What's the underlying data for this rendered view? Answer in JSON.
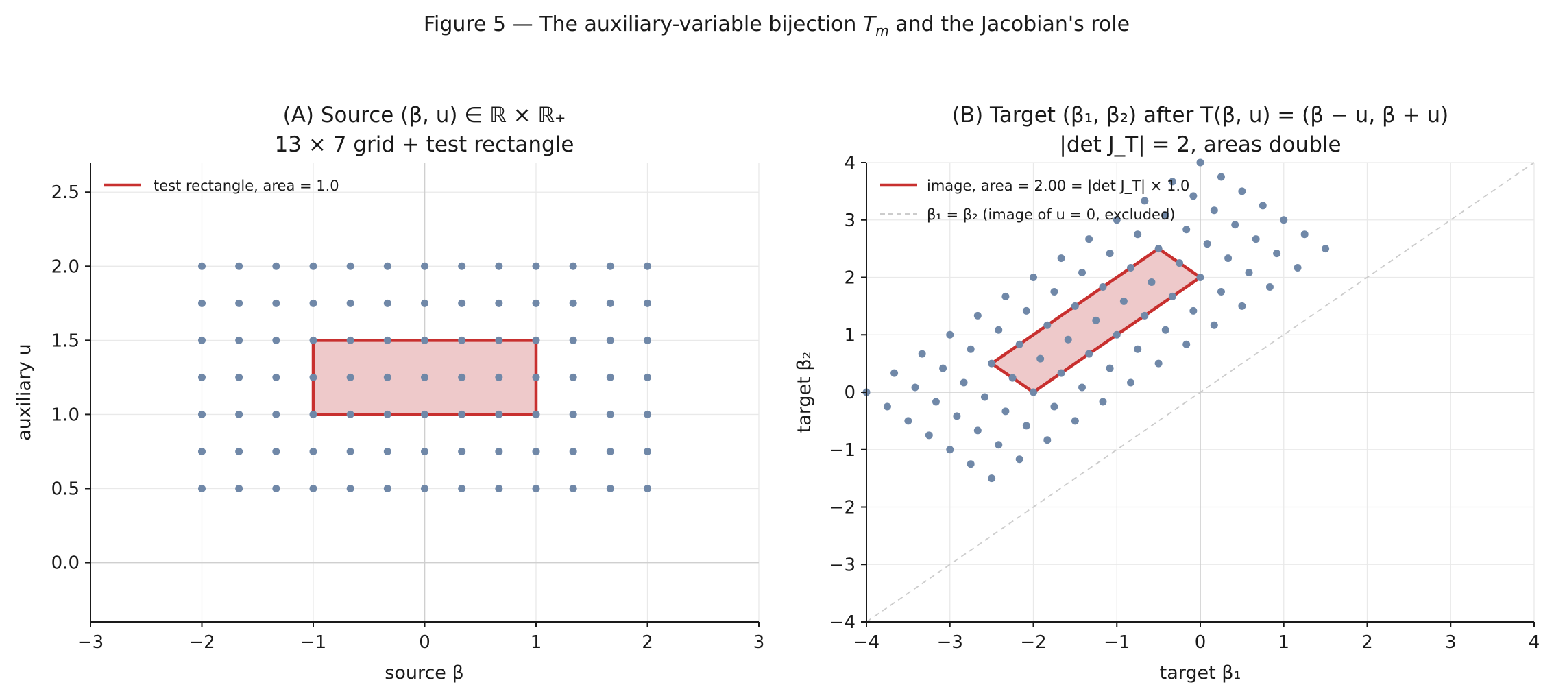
{
  "figure_title": {
    "pre": "Figure 5 — The auxiliary-variable bijection ",
    "sym": "T",
    "sub": "m",
    "post": " and the Jacobian's role"
  },
  "colors": {
    "points": "#7088a8",
    "rect_edge": "#c8302f",
    "rect_fill": "#eec9ca",
    "diagonal": "#cccccc",
    "grid": "#e9e9e9",
    "zero_line": "#cfcfcf"
  },
  "chart_data": [
    {
      "type": "scatter",
      "panel": "A",
      "title_line1": "(A) Source (β, u) ∈ ℝ × ℝ₊",
      "title_line2": "13 × 7 grid + test rectangle",
      "xlabel": "source β",
      "ylabel": "auxiliary u",
      "xlim": [
        -3,
        3
      ],
      "ylim": [
        -0.4,
        2.7
      ],
      "xticks": [
        -3,
        -2,
        -1,
        0,
        1,
        2,
        3
      ],
      "yticks": [
        0.0,
        0.5,
        1.0,
        1.5,
        2.0,
        2.5
      ],
      "xtick_labels": [
        "−3",
        "−2",
        "−1",
        "0",
        "1",
        "2",
        "3"
      ],
      "ytick_labels": [
        "0.0",
        "0.5",
        "1.0",
        "1.5",
        "2.0",
        "2.5"
      ],
      "grid": true,
      "grid_x": {
        "start": -2,
        "stop": 2,
        "count": 13
      },
      "grid_u": {
        "start": 0.5,
        "stop": 2.0,
        "count": 7
      },
      "rectangle": [
        [
          -1,
          1
        ],
        [
          1,
          1
        ],
        [
          1,
          1.5
        ],
        [
          -1,
          1.5
        ]
      ],
      "legend": [
        {
          "label": "test rectangle, area = 1.0",
          "style": "rect-line"
        }
      ],
      "legend_position": "upper-left"
    },
    {
      "type": "scatter",
      "panel": "B",
      "title_line1": "(B) Target (β₁, β₂) after T(β, u) = (β − u, β + u)",
      "title_line2": "|det J_T| = 2, areas double",
      "xlabel": "target β₁",
      "ylabel": "target β₂",
      "xlim": [
        -4,
        4
      ],
      "ylim": [
        -4,
        4
      ],
      "xticks": [
        -4,
        -3,
        -2,
        -1,
        0,
        1,
        2,
        3,
        4
      ],
      "yticks": [
        -4,
        -3,
        -2,
        -1,
        0,
        1,
        2,
        3,
        4
      ],
      "xtick_labels": [
        "−4",
        "−3",
        "−2",
        "−1",
        "0",
        "1",
        "2",
        "3",
        "4"
      ],
      "ytick_labels": [
        "−4",
        "−3",
        "−2",
        "−1",
        "0",
        "1",
        "2",
        "3",
        "4"
      ],
      "grid": true,
      "transform": "(beta - u, beta + u)",
      "rectangle": [
        [
          -2,
          0
        ],
        [
          0,
          2
        ],
        [
          -0.5,
          2.5
        ],
        [
          -2.5,
          0.5
        ]
      ],
      "diagonal": [
        [
          -4,
          -4
        ],
        [
          4,
          4
        ]
      ],
      "legend": [
        {
          "label": "image, area = 2.00 = |det J_T| × 1.0",
          "style": "rect-line"
        },
        {
          "label": "β₁ = β₂ (image of u = 0, excluded)",
          "style": "diagonal-line"
        }
      ],
      "legend_position": "upper-left"
    }
  ]
}
